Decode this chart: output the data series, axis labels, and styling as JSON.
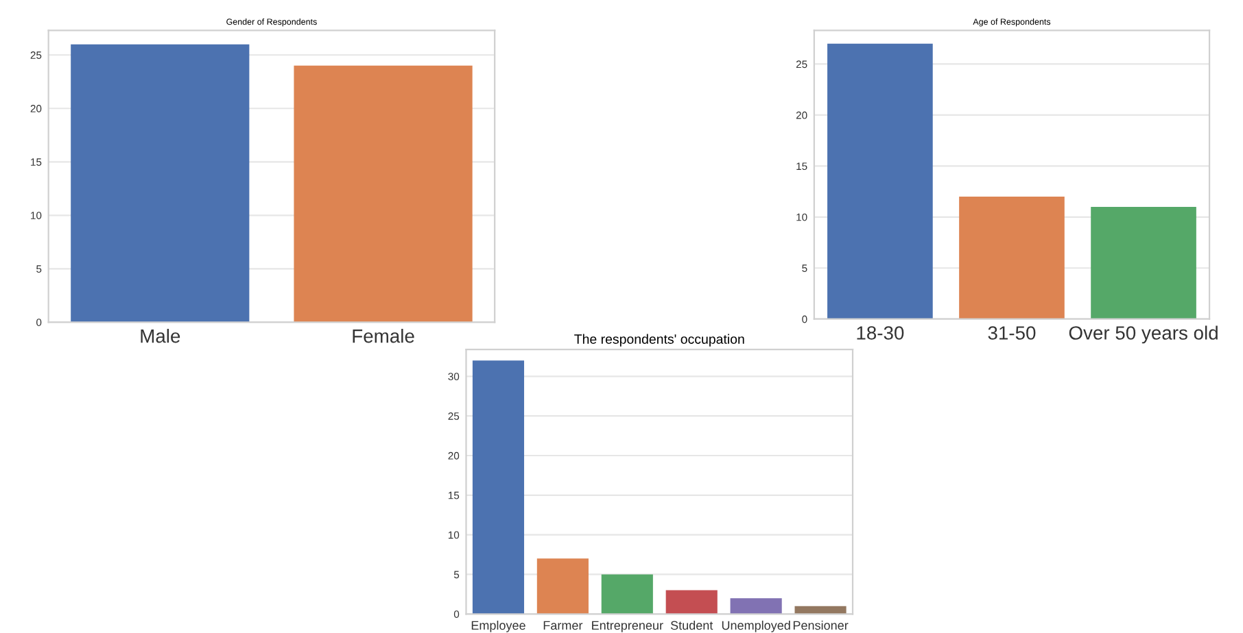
{
  "chart_data": [
    {
      "type": "bar",
      "title": "Gender of Respondents",
      "categories": [
        "Male",
        "Female"
      ],
      "values": [
        26,
        24
      ],
      "colors": [
        "#4c72b0",
        "#dd8452"
      ],
      "ylim": [
        0,
        27.3
      ],
      "yticks": [
        0,
        5,
        10,
        15,
        20,
        25
      ],
      "grid": "y"
    },
    {
      "type": "bar",
      "title": "Age of Respondents",
      "categories": [
        "18-30",
        "31-50",
        "Over 50 years old"
      ],
      "values": [
        27,
        12,
        11
      ],
      "colors": [
        "#4c72b0",
        "#dd8452",
        "#55a868"
      ],
      "ylim": [
        0,
        28.3
      ],
      "yticks": [
        0,
        5,
        10,
        15,
        20,
        25
      ],
      "grid": "y"
    },
    {
      "type": "bar",
      "title": "The respondents' occupation",
      "categories": [
        "Employee",
        "Farmer",
        "Entrepreneur",
        "Student",
        "Unemployed",
        "Pensioner"
      ],
      "values": [
        32,
        7,
        5,
        3,
        2,
        1
      ],
      "colors": [
        "#4c72b0",
        "#dd8452",
        "#55a868",
        "#c44e52",
        "#8172b3",
        "#937860"
      ],
      "ylim": [
        0,
        33.4
      ],
      "yticks": [
        0,
        5,
        10,
        15,
        20,
        25,
        30
      ],
      "grid": "y"
    }
  ]
}
